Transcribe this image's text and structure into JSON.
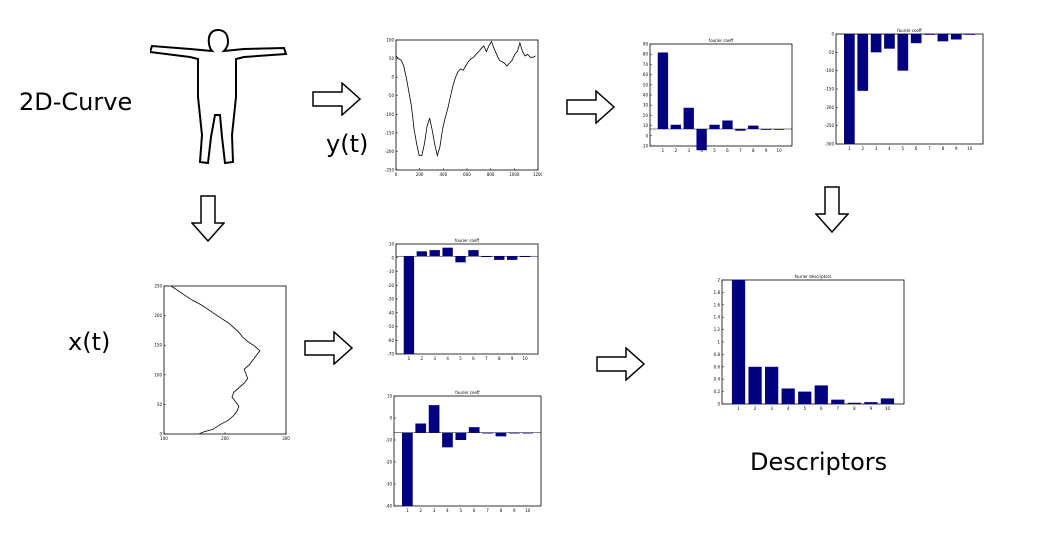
{
  "labels": {
    "curve": "2D-Curve",
    "yt": "y(t)",
    "xt": "x(t)",
    "descriptors": "Descriptors"
  },
  "colors": {
    "bar": "#000080",
    "line": "#000000",
    "frame": "#000000"
  },
  "chart_data": [
    {
      "id": "y-signal",
      "type": "line",
      "title": "",
      "x": [
        0,
        20,
        40,
        60,
        80,
        100,
        120,
        140,
        160,
        180,
        200,
        220,
        240,
        260,
        280,
        300,
        320,
        340,
        360,
        380,
        400,
        420,
        440,
        460,
        480,
        500,
        520,
        540,
        560,
        580,
        600,
        620,
        640,
        660,
        680,
        700,
        720,
        740,
        760,
        780,
        800,
        820,
        840,
        860,
        880,
        900,
        920,
        940,
        960,
        980,
        1000,
        1020,
        1040,
        1060,
        1080
      ],
      "y": [
        95,
        85,
        80,
        60,
        20,
        -30,
        -80,
        -160,
        -210,
        -250,
        -250,
        -210,
        -150,
        -120,
        -160,
        -210,
        -250,
        -220,
        -160,
        -120,
        -90,
        -50,
        -10,
        20,
        40,
        50,
        45,
        60,
        75,
        85,
        90,
        100,
        110,
        120,
        130,
        110,
        130,
        145,
        120,
        100,
        80,
        75,
        70,
        60,
        70,
        80,
        100,
        110,
        140,
        110,
        95,
        100,
        90,
        90,
        95
      ],
      "xlim": [
        0,
        1100
      ],
      "ylim": [
        -300,
        150
      ],
      "xticks": [
        "0",
        "200",
        "400",
        "600",
        "800",
        "1000",
        "1200"
      ],
      "yticks": [
        "100",
        "50",
        "0",
        "-50",
        "-100",
        "-150",
        "-200",
        "-250"
      ]
    },
    {
      "id": "x-signal",
      "type": "line",
      "title": "",
      "x": [
        100,
        115,
        140,
        160,
        185,
        200,
        210,
        215,
        205,
        195,
        200,
        215,
        230,
        240,
        235,
        230,
        245,
        255,
        265,
        275,
        260,
        240,
        225,
        215,
        200,
        185,
        165,
        145,
        125,
        105,
        80,
        60,
        40,
        20
      ],
      "y": [
        0,
        5,
        10,
        20,
        30,
        40,
        50,
        60,
        70,
        80,
        90,
        100,
        110,
        120,
        130,
        140,
        150,
        160,
        170,
        180,
        190,
        200,
        210,
        220,
        230,
        240,
        250,
        260,
        270,
        280,
        290,
        300,
        310,
        320
      ],
      "xlim": [
        0,
        350
      ],
      "ylim": [
        0,
        320
      ],
      "xticks": [
        "100",
        "200",
        "300"
      ],
      "yticks": [
        "250",
        "200",
        "150",
        "100",
        "50",
        "0"
      ]
    },
    {
      "id": "y-fourier-re",
      "type": "bar",
      "title": "fourier coeff",
      "categories": [
        "1",
        "2",
        "3",
        "4",
        "5",
        "6",
        "7",
        "8",
        "9",
        "10"
      ],
      "values": [
        90,
        5,
        25,
        -25,
        5,
        10,
        -2,
        4,
        -1,
        0
      ],
      "ylim": [
        -20,
        100
      ],
      "yticks": [
        "90",
        "80",
        "70",
        "60",
        "50",
        "40",
        "30",
        "20",
        "10",
        "0",
        "-10"
      ]
    },
    {
      "id": "y-fourier-im",
      "type": "bar",
      "title": "fourier coeff",
      "categories": [
        "1",
        "2",
        "3",
        "4",
        "5",
        "6",
        "7",
        "8",
        "9",
        "10"
      ],
      "values": [
        -300,
        -155,
        -50,
        -40,
        -100,
        -25,
        0,
        -20,
        -15,
        0
      ],
      "ylim": [
        -300,
        0
      ],
      "yticks": [
        "0",
        "-50",
        "-100",
        "-150",
        "-200",
        "-250",
        "-300"
      ]
    },
    {
      "id": "x-fourier-re",
      "type": "bar",
      "title": "fourier coeff",
      "categories": [
        "1",
        "2",
        "3",
        "4",
        "5",
        "6",
        "7",
        "8",
        "9",
        "10"
      ],
      "values": [
        -80,
        4,
        5,
        7,
        -5,
        5,
        0,
        -3,
        -3,
        0
      ],
      "ylim": [
        -80,
        10
      ],
      "yticks": [
        "10",
        "0",
        "-10",
        "-20",
        "-30",
        "-40",
        "-50",
        "-60",
        "-70"
      ]
    },
    {
      "id": "x-fourier-im",
      "type": "bar",
      "title": "fourier coeff",
      "categories": [
        "1",
        "2",
        "3",
        "4",
        "5",
        "6",
        "7",
        "8",
        "9",
        "10"
      ],
      "values": [
        -40,
        5,
        15,
        -8,
        -4,
        3,
        0,
        -2,
        0,
        0
      ],
      "ylim": [
        -40,
        20
      ],
      "yticks": [
        "10",
        "0",
        "-10",
        "-20",
        "-30",
        "-40"
      ]
    },
    {
      "id": "fourier-descriptors",
      "type": "bar",
      "title": "fourier descriptors",
      "categories": [
        "1",
        "2",
        "3",
        "4",
        "5",
        "6",
        "7",
        "8",
        "9",
        "10"
      ],
      "values": [
        2.0,
        0.6,
        0.6,
        0.25,
        0.2,
        0.3,
        0.07,
        0.02,
        0.03,
        0.09
      ],
      "ylim": [
        0,
        2
      ],
      "yticks": [
        "2",
        "1.8",
        "1.6",
        "1.4",
        "1.2",
        "1",
        "0.8",
        "0.6",
        "0.4",
        "0.2",
        "0"
      ]
    }
  ]
}
